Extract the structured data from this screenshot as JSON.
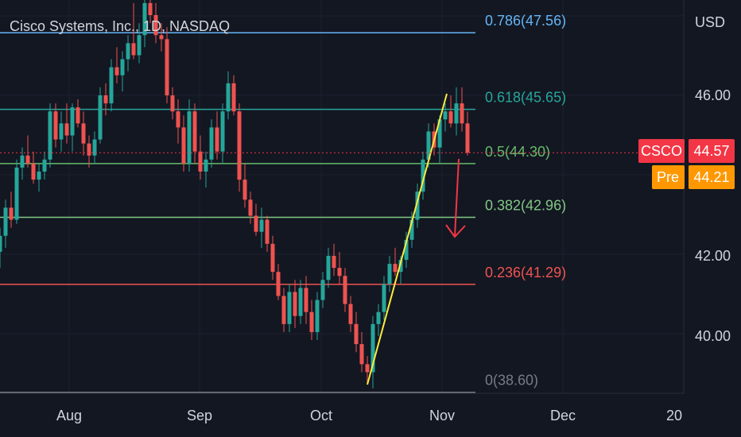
{
  "header": {
    "title": "Cisco Systems, Inc., 1D, NASDAQ"
  },
  "axis": {
    "unit": "USD"
  },
  "chart_data": {
    "type": "candlestick",
    "title": "Cisco Systems, Inc., 1D, NASDAQ",
    "ylabel": "USD",
    "ylim": [
      37.9,
      49.6
    ],
    "y_ticks": [
      "40.00",
      "42.00",
      "46.00"
    ],
    "x_ticks": [
      "Aug",
      "Sep",
      "Oct",
      "Nov",
      "Dec",
      "20"
    ],
    "grid": true,
    "candles": [
      {
        "o": 42.1,
        "h": 42.7,
        "l": 41.7,
        "c": 42.5
      },
      {
        "o": 42.5,
        "h": 43.4,
        "l": 42.2,
        "c": 43.2
      },
      {
        "o": 43.2,
        "h": 43.6,
        "l": 42.7,
        "c": 42.9
      },
      {
        "o": 42.9,
        "h": 44.4,
        "l": 42.8,
        "c": 44.2
      },
      {
        "o": 44.2,
        "h": 44.7,
        "l": 43.9,
        "c": 44.5
      },
      {
        "o": 44.5,
        "h": 45.0,
        "l": 44.2,
        "c": 44.3
      },
      {
        "o": 44.3,
        "h": 44.6,
        "l": 43.8,
        "c": 43.9
      },
      {
        "o": 43.9,
        "h": 44.3,
        "l": 43.6,
        "c": 44.1
      },
      {
        "o": 44.1,
        "h": 44.6,
        "l": 43.9,
        "c": 44.4
      },
      {
        "o": 44.4,
        "h": 45.8,
        "l": 44.2,
        "c": 45.6
      },
      {
        "o": 45.6,
        "h": 45.8,
        "l": 44.7,
        "c": 44.9
      },
      {
        "o": 44.9,
        "h": 45.6,
        "l": 44.6,
        "c": 45.3
      },
      {
        "o": 45.3,
        "h": 45.8,
        "l": 44.8,
        "c": 45.0
      },
      {
        "o": 45.0,
        "h": 45.8,
        "l": 44.6,
        "c": 45.7
      },
      {
        "o": 45.7,
        "h": 45.9,
        "l": 45.2,
        "c": 45.3
      },
      {
        "o": 45.3,
        "h": 45.6,
        "l": 44.5,
        "c": 44.8
      },
      {
        "o": 44.8,
        "h": 45.0,
        "l": 44.2,
        "c": 44.5
      },
      {
        "o": 44.5,
        "h": 45.1,
        "l": 44.3,
        "c": 44.9
      },
      {
        "o": 44.9,
        "h": 46.2,
        "l": 44.8,
        "c": 46.0
      },
      {
        "o": 46.0,
        "h": 46.3,
        "l": 45.5,
        "c": 45.8
      },
      {
        "o": 45.8,
        "h": 46.9,
        "l": 45.6,
        "c": 46.7
      },
      {
        "o": 46.7,
        "h": 47.2,
        "l": 46.3,
        "c": 46.5
      },
      {
        "o": 46.5,
        "h": 47.1,
        "l": 46.1,
        "c": 46.9
      },
      {
        "o": 46.9,
        "h": 47.5,
        "l": 46.6,
        "c": 47.3
      },
      {
        "o": 47.3,
        "h": 48.3,
        "l": 46.9,
        "c": 47.0
      },
      {
        "o": 47.0,
        "h": 47.8,
        "l": 46.8,
        "c": 47.5
      },
      {
        "o": 47.5,
        "h": 49.6,
        "l": 47.2,
        "c": 48.3
      },
      {
        "o": 48.3,
        "h": 48.6,
        "l": 47.8,
        "c": 48.0
      },
      {
        "o": 48.0,
        "h": 48.3,
        "l": 47.3,
        "c": 47.5
      },
      {
        "o": 47.5,
        "h": 47.8,
        "l": 47.1,
        "c": 47.4
      },
      {
        "o": 47.4,
        "h": 47.7,
        "l": 45.8,
        "c": 46.0
      },
      {
        "o": 46.0,
        "h": 46.2,
        "l": 45.4,
        "c": 45.6
      },
      {
        "o": 45.6,
        "h": 45.9,
        "l": 44.8,
        "c": 45.2
      },
      {
        "o": 45.2,
        "h": 45.5,
        "l": 44.1,
        "c": 44.3
      },
      {
        "o": 44.3,
        "h": 45.9,
        "l": 44.1,
        "c": 45.6
      },
      {
        "o": 45.6,
        "h": 45.8,
        "l": 44.3,
        "c": 44.6
      },
      {
        "o": 44.6,
        "h": 45.0,
        "l": 43.9,
        "c": 44.1
      },
      {
        "o": 44.1,
        "h": 44.6,
        "l": 43.7,
        "c": 44.4
      },
      {
        "o": 44.4,
        "h": 45.4,
        "l": 44.2,
        "c": 45.2
      },
      {
        "o": 45.2,
        "h": 45.6,
        "l": 44.4,
        "c": 44.6
      },
      {
        "o": 44.6,
        "h": 45.8,
        "l": 44.3,
        "c": 45.6
      },
      {
        "o": 45.6,
        "h": 46.6,
        "l": 45.4,
        "c": 46.3
      },
      {
        "o": 46.3,
        "h": 46.5,
        "l": 45.5,
        "c": 45.6
      },
      {
        "o": 45.6,
        "h": 45.8,
        "l": 43.6,
        "c": 43.9
      },
      {
        "o": 43.9,
        "h": 44.3,
        "l": 43.2,
        "c": 43.4
      },
      {
        "o": 43.4,
        "h": 43.6,
        "l": 42.8,
        "c": 43.0
      },
      {
        "o": 43.0,
        "h": 43.3,
        "l": 42.5,
        "c": 42.6
      },
      {
        "o": 42.6,
        "h": 43.2,
        "l": 42.2,
        "c": 42.9
      },
      {
        "o": 42.9,
        "h": 43.0,
        "l": 42.1,
        "c": 42.3
      },
      {
        "o": 42.3,
        "h": 42.5,
        "l": 41.4,
        "c": 41.6
      },
      {
        "o": 41.6,
        "h": 41.8,
        "l": 40.9,
        "c": 41.0
      },
      {
        "o": 41.0,
        "h": 41.2,
        "l": 40.1,
        "c": 40.3
      },
      {
        "o": 40.3,
        "h": 41.3,
        "l": 40.1,
        "c": 41.1
      },
      {
        "o": 41.1,
        "h": 41.4,
        "l": 40.2,
        "c": 40.5
      },
      {
        "o": 40.5,
        "h": 41.4,
        "l": 40.3,
        "c": 41.2
      },
      {
        "o": 41.2,
        "h": 41.5,
        "l": 40.3,
        "c": 40.6
      },
      {
        "o": 40.6,
        "h": 40.9,
        "l": 39.9,
        "c": 40.1
      },
      {
        "o": 40.1,
        "h": 41.1,
        "l": 39.9,
        "c": 40.9
      },
      {
        "o": 40.9,
        "h": 41.6,
        "l": 40.7,
        "c": 41.4
      },
      {
        "o": 41.4,
        "h": 42.2,
        "l": 41.2,
        "c": 42.0
      },
      {
        "o": 42.0,
        "h": 42.3,
        "l": 41.5,
        "c": 41.7
      },
      {
        "o": 41.7,
        "h": 42.1,
        "l": 41.3,
        "c": 41.5
      },
      {
        "o": 41.5,
        "h": 41.7,
        "l": 40.6,
        "c": 40.8
      },
      {
        "o": 40.8,
        "h": 41.0,
        "l": 40.1,
        "c": 40.3
      },
      {
        "o": 40.3,
        "h": 40.6,
        "l": 39.6,
        "c": 39.8
      },
      {
        "o": 39.8,
        "h": 40.1,
        "l": 39.1,
        "c": 39.3
      },
      {
        "o": 39.3,
        "h": 39.5,
        "l": 38.8,
        "c": 39.1
      },
      {
        "o": 39.1,
        "h": 40.5,
        "l": 38.7,
        "c": 40.3
      },
      {
        "o": 40.3,
        "h": 40.8,
        "l": 40.0,
        "c": 40.6
      },
      {
        "o": 40.6,
        "h": 41.5,
        "l": 40.4,
        "c": 41.3
      },
      {
        "o": 41.3,
        "h": 42.0,
        "l": 41.1,
        "c": 41.8
      },
      {
        "o": 41.8,
        "h": 42.2,
        "l": 41.5,
        "c": 41.6
      },
      {
        "o": 41.6,
        "h": 42.0,
        "l": 41.3,
        "c": 41.9
      },
      {
        "o": 41.9,
        "h": 42.6,
        "l": 41.7,
        "c": 42.4
      },
      {
        "o": 42.4,
        "h": 43.1,
        "l": 42.2,
        "c": 42.9
      },
      {
        "o": 42.9,
        "h": 43.8,
        "l": 42.7,
        "c": 43.6
      },
      {
        "o": 43.6,
        "h": 44.6,
        "l": 43.4,
        "c": 44.4
      },
      {
        "o": 44.4,
        "h": 45.3,
        "l": 44.2,
        "c": 45.1
      },
      {
        "o": 45.1,
        "h": 45.3,
        "l": 44.5,
        "c": 44.7
      },
      {
        "o": 44.7,
        "h": 45.5,
        "l": 44.3,
        "c": 45.4
      },
      {
        "o": 45.4,
        "h": 45.8,
        "l": 45.1,
        "c": 45.6
      },
      {
        "o": 45.6,
        "h": 46.0,
        "l": 45.2,
        "c": 45.3
      },
      {
        "o": 45.3,
        "h": 46.2,
        "l": 45.0,
        "c": 45.8
      },
      {
        "o": 45.8,
        "h": 46.2,
        "l": 45.1,
        "c": 45.3
      },
      {
        "o": 45.3,
        "h": 45.6,
        "l": 44.5,
        "c": 44.57
      }
    ],
    "fib_levels": [
      {
        "label": "0.786(47.56)",
        "price": 47.56,
        "color": "#64b5f6"
      },
      {
        "label": "0.618(45.65)",
        "price": 45.65,
        "color": "#26a69a"
      },
      {
        "label": "0.5(44.30)",
        "price": 44.3,
        "color": "#66bb6a"
      },
      {
        "label": "0.382(42.96)",
        "price": 42.96,
        "color": "#81c784"
      },
      {
        "label": "0.236(41.29)",
        "price": 41.29,
        "color": "#ef5350"
      },
      {
        "label": "0(38.60)",
        "price": 38.6,
        "color": "#787b86"
      }
    ],
    "last_price": {
      "symbol": "CSCO",
      "value": "44.57",
      "price": 44.57,
      "color": "#f23645"
    },
    "premarket": {
      "symbol": "Pre",
      "value": "44.21",
      "price": 44.21,
      "color": "#ff9800"
    },
    "colors": {
      "up": "#26a69a",
      "down": "#ef5350",
      "trendline": "#ffeb3b",
      "arrow": "#f23645",
      "background": "#131722",
      "grid": "#1f2430"
    }
  }
}
